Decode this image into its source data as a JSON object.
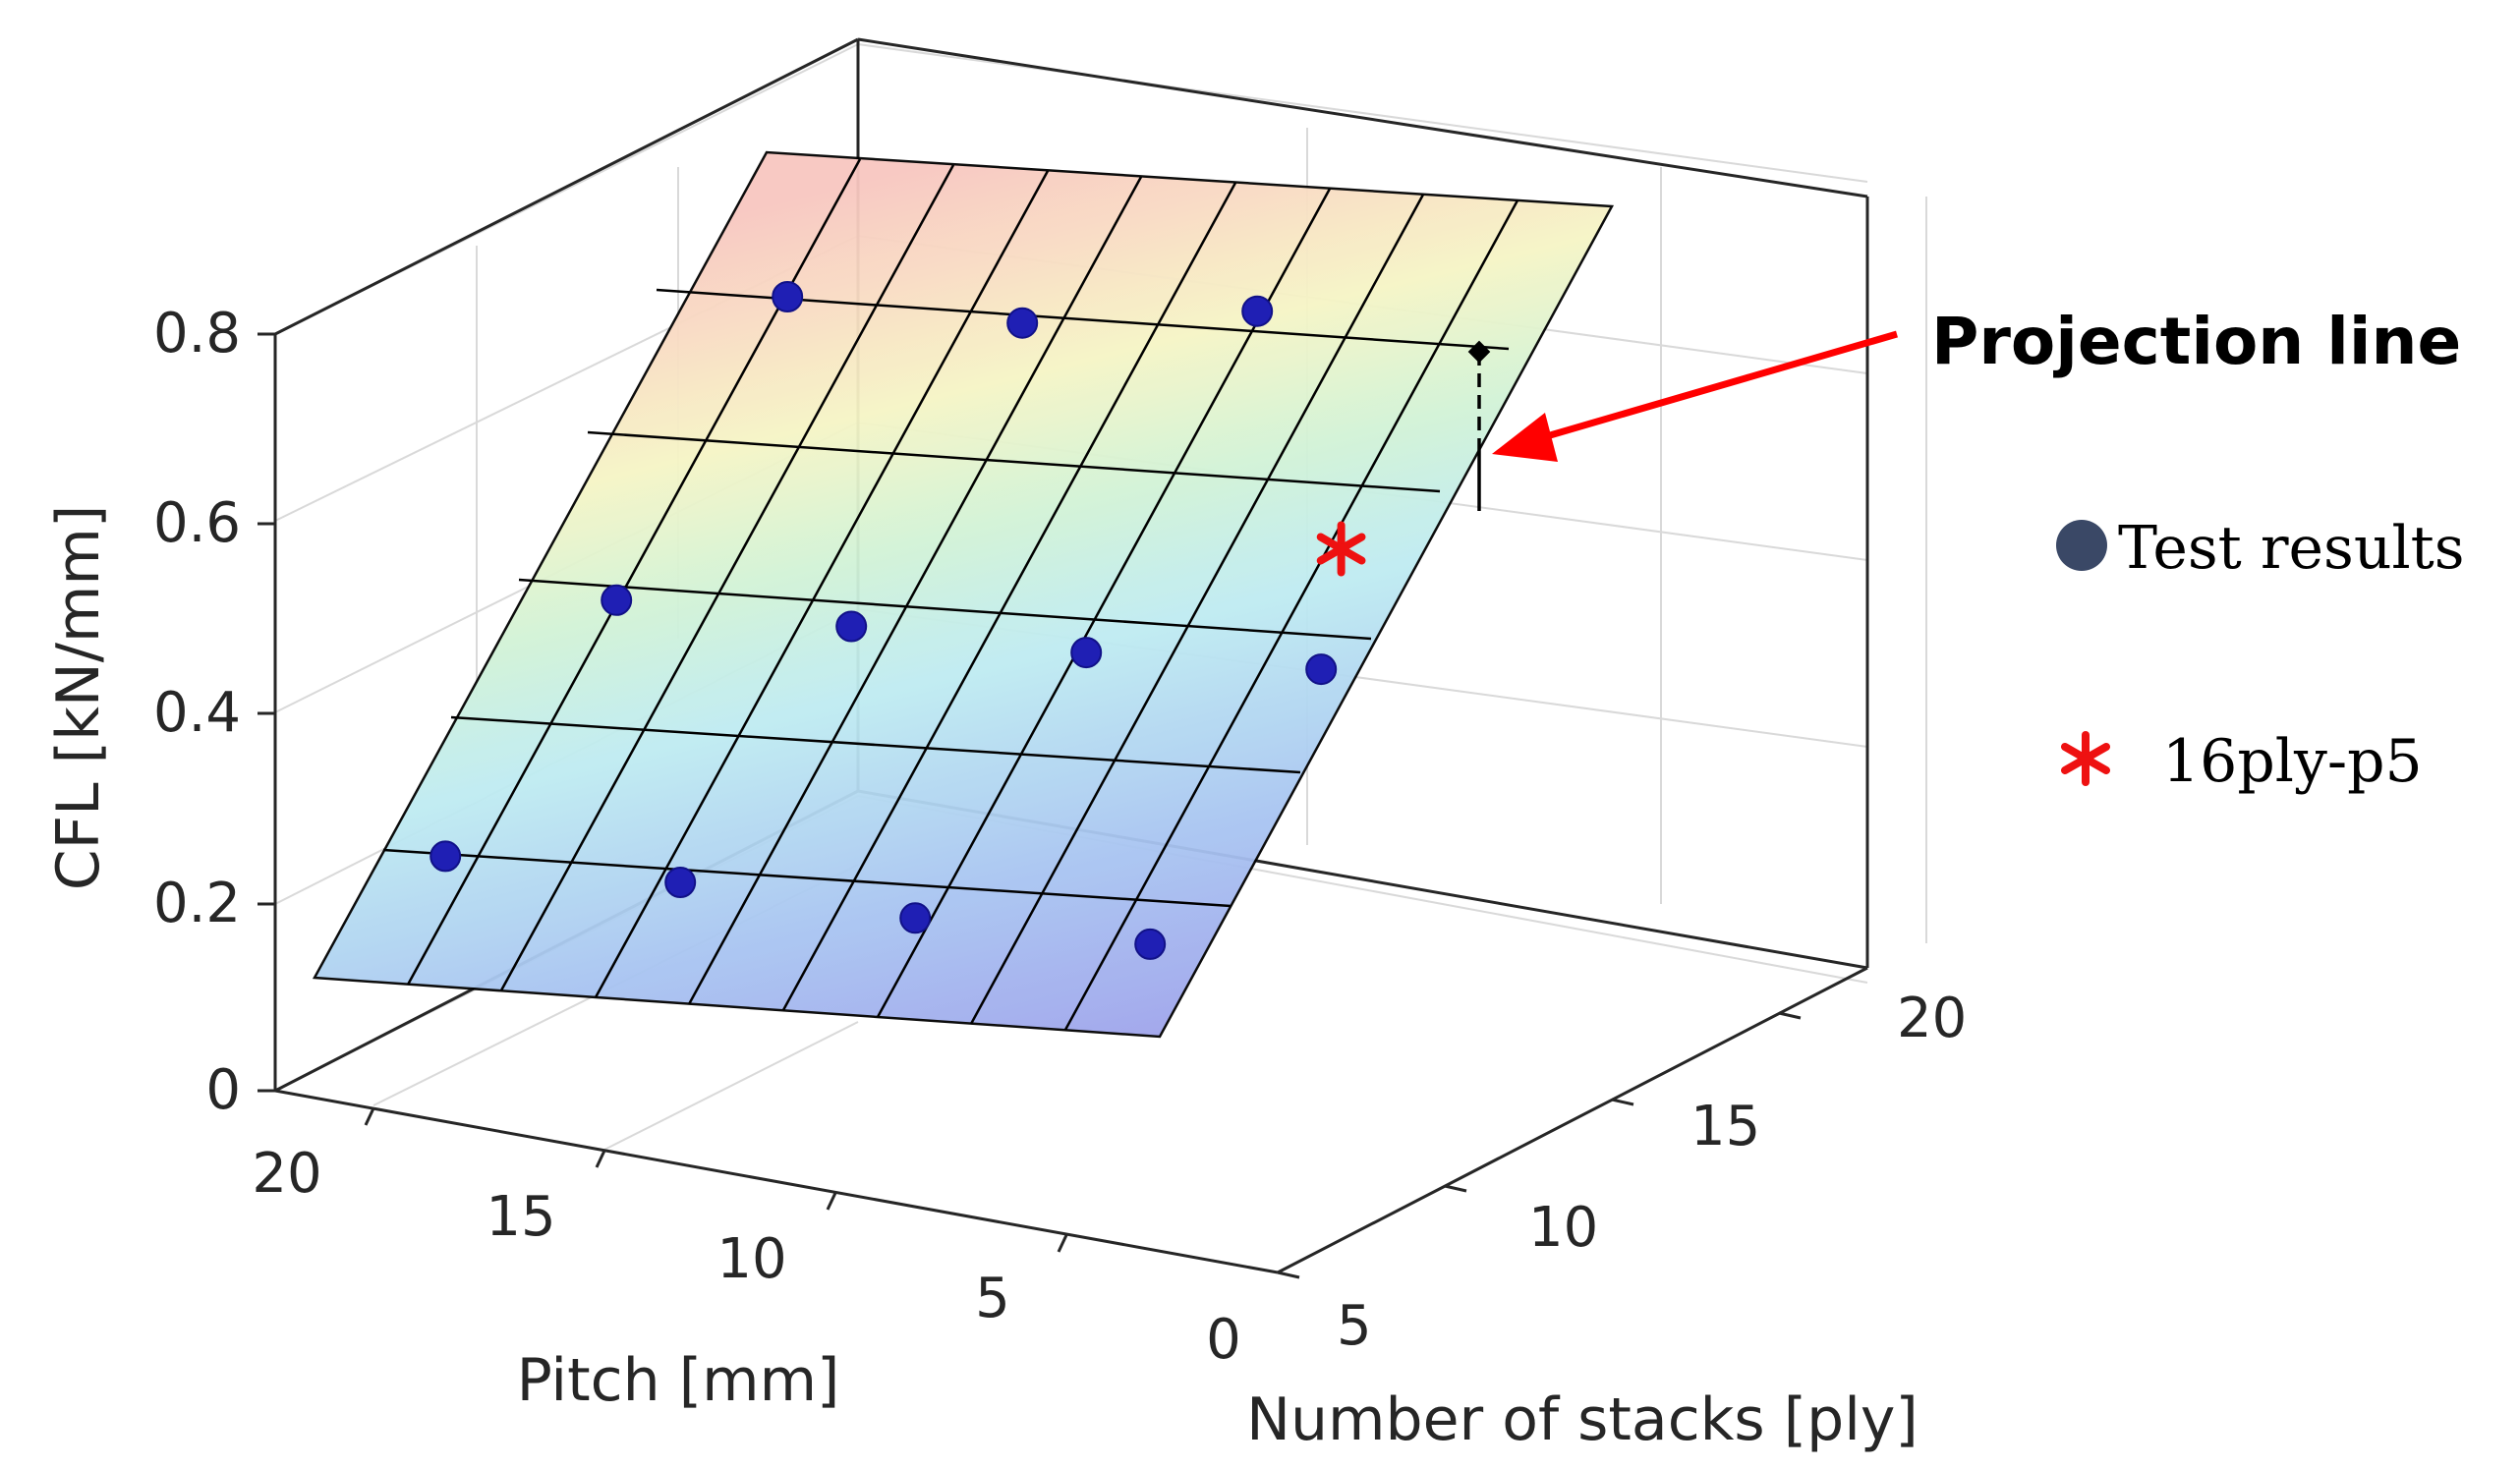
{
  "chart_data": {
    "type": "surface3d",
    "title": "",
    "xlabel": "Pitch [mm]",
    "ylabel": "Number of stacks [ply]",
    "zlabel": "CFL [kN/mm]",
    "x_ticks": [
      "20",
      "15",
      "10",
      "5",
      "0"
    ],
    "y_ticks": [
      "5",
      "10",
      "15",
      "20"
    ],
    "z_ticks": [
      "0",
      "0.2",
      "0.4",
      "0.6",
      "0.8"
    ],
    "xlim": [
      0,
      20
    ],
    "ylim": [
      5,
      20
    ],
    "zlim": [
      0,
      0.8
    ],
    "grid": true,
    "surface": {
      "description_model": "CFL increases with number of stacks, nearly independent of pitch",
      "x_range": [
        2,
        20
      ],
      "y_range": [
        4,
        20
      ],
      "z_at_y_min": 0.12,
      "z_at_y_max": 0.9
    },
    "series": [
      {
        "name": "Test results",
        "marker": "circle",
        "color": "#1f1fb4",
        "points": [
          {
            "pitch": 18,
            "plies": 6,
            "cfl": 0.25
          },
          {
            "pitch": 13,
            "plies": 6,
            "cfl": 0.24
          },
          {
            "pitch": 8,
            "plies": 6,
            "cfl": 0.22
          },
          {
            "pitch": 3,
            "plies": 6,
            "cfl": 0.21
          },
          {
            "pitch": 18,
            "plies": 12,
            "cfl": 0.52
          },
          {
            "pitch": 13,
            "plies": 12,
            "cfl": 0.51
          },
          {
            "pitch": 8,
            "plies": 12,
            "cfl": 0.5
          },
          {
            "pitch": 3,
            "plies": 12,
            "cfl": 0.5
          },
          {
            "pitch": 18,
            "plies": 18,
            "cfl": 0.84
          },
          {
            "pitch": 13,
            "plies": 18,
            "cfl": 0.83
          },
          {
            "pitch": 8,
            "plies": 18,
            "cfl": 0.86
          }
        ]
      },
      {
        "name": "16ply-p5",
        "marker": "asterisk",
        "color": "#ee1111",
        "points": [
          {
            "pitch": 5,
            "plies": 16,
            "cfl": 0.62
          }
        ]
      }
    ],
    "annotation": {
      "text": "Projection line"
    }
  },
  "legend": {
    "items": [
      {
        "label": "Test results",
        "color": "#3a4866"
      },
      {
        "label": "16ply-p5",
        "color": "#ee1111"
      }
    ]
  }
}
